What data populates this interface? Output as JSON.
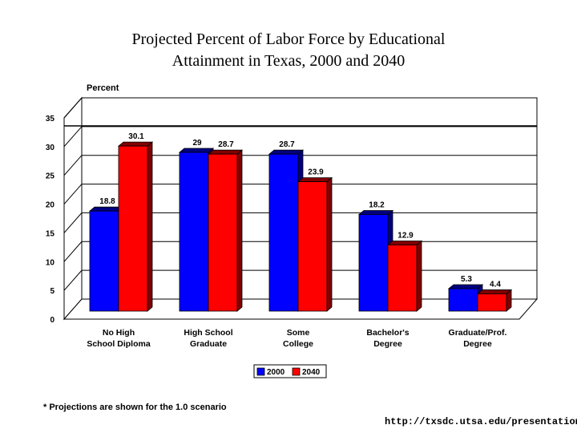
{
  "chart_data": {
    "type": "bar",
    "title_lines": [
      "Projected Percent of Labor Force by Educational",
      "Attainment in Texas, 2000 and 2040"
    ],
    "ylabel": "Percent",
    "xlabel": "",
    "ylim": [
      0,
      35
    ],
    "yticks": [
      0,
      5,
      10,
      15,
      20,
      25,
      30,
      35
    ],
    "categories": [
      [
        "No High",
        "School Diploma"
      ],
      [
        "High School",
        "Graduate"
      ],
      [
        "Some",
        "College"
      ],
      [
        "Bachelor's",
        "Degree"
      ],
      [
        "Graduate/Prof.",
        "Degree"
      ]
    ],
    "series": [
      {
        "name": "2000",
        "color": "#0000ff",
        "values": [
          18.8,
          29,
          28.7,
          18.2,
          5.3
        ],
        "labels": [
          "18.8",
          "29",
          "28.7",
          "18.2",
          "5.3"
        ]
      },
      {
        "name": "2040",
        "color": "#ff0000",
        "values": [
          30.1,
          28.7,
          23.9,
          12.9,
          4.4
        ],
        "labels": [
          "30.1",
          "28.7",
          "23.9",
          "12.9",
          "4.4"
        ]
      }
    ],
    "grid": true,
    "legend_position": "bottom"
  },
  "footnote": "* Projections are shown for the 1.0 scenario",
  "source_url": "http://txsdc.utsa.edu/presentations/"
}
